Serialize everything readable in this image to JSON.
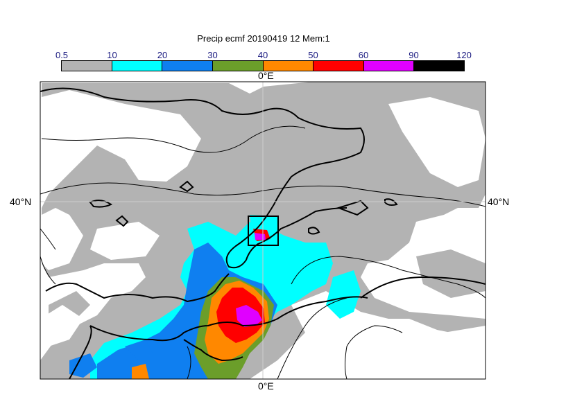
{
  "title": "Precip ecmf 20190419 12 Mem:1",
  "colorbar": {
    "ticks": [
      "0.5",
      "10",
      "20",
      "30",
      "40",
      "50",
      "60",
      "90",
      "120"
    ],
    "colors": [
      "#b3b3b3",
      "#00ffff",
      "#0f7ff0",
      "#6b9e2a",
      "#ff8800",
      "#ff0000",
      "#e000ff",
      "#000000"
    ]
  },
  "axes": {
    "lon_top": "0°E",
    "lon_bottom": "0°E",
    "lat_left": "40°N",
    "lat_right": "40°N"
  }
}
